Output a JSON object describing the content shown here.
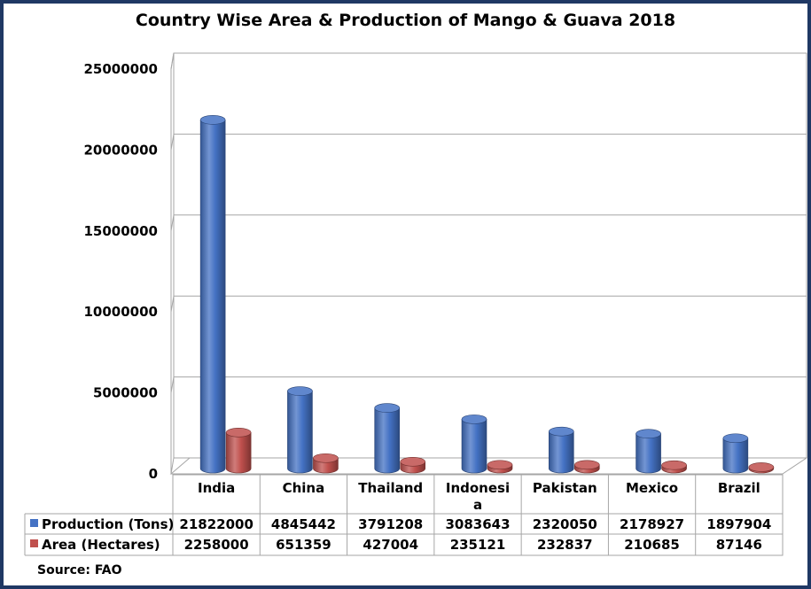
{
  "chart_data": {
    "type": "bar",
    "title": "Country Wise Area & Production of Mango & Guava 2018",
    "categories": [
      "India",
      "China",
      "Thailand",
      "Indonesia",
      "Pakistan",
      "Mexico",
      "Brazil"
    ],
    "category_display": [
      [
        "India"
      ],
      [
        "China"
      ],
      [
        "Thailand"
      ],
      [
        "Indonesi",
        "a"
      ],
      [
        "Pakistan"
      ],
      [
        "Mexico"
      ],
      [
        "Brazil"
      ]
    ],
    "series": [
      {
        "name": "Production (Tons)",
        "values": [
          21822000,
          4845442,
          3791208,
          3083643,
          2320050,
          2178927,
          1897904
        ],
        "color": "#4472c4"
      },
      {
        "name": "Area (Hectares)",
        "values": [
          2258000,
          651359,
          427004,
          235121,
          232837,
          210685,
          87146
        ],
        "color": "#c0504d"
      }
    ],
    "y_ticks": [
      "0",
      "5000000",
      "10000000",
      "15000000",
      "20000000",
      "25000000"
    ],
    "ylim": [
      0,
      25000000
    ],
    "grid": true,
    "legend": "data table below chart",
    "source": "Source: FAO"
  }
}
